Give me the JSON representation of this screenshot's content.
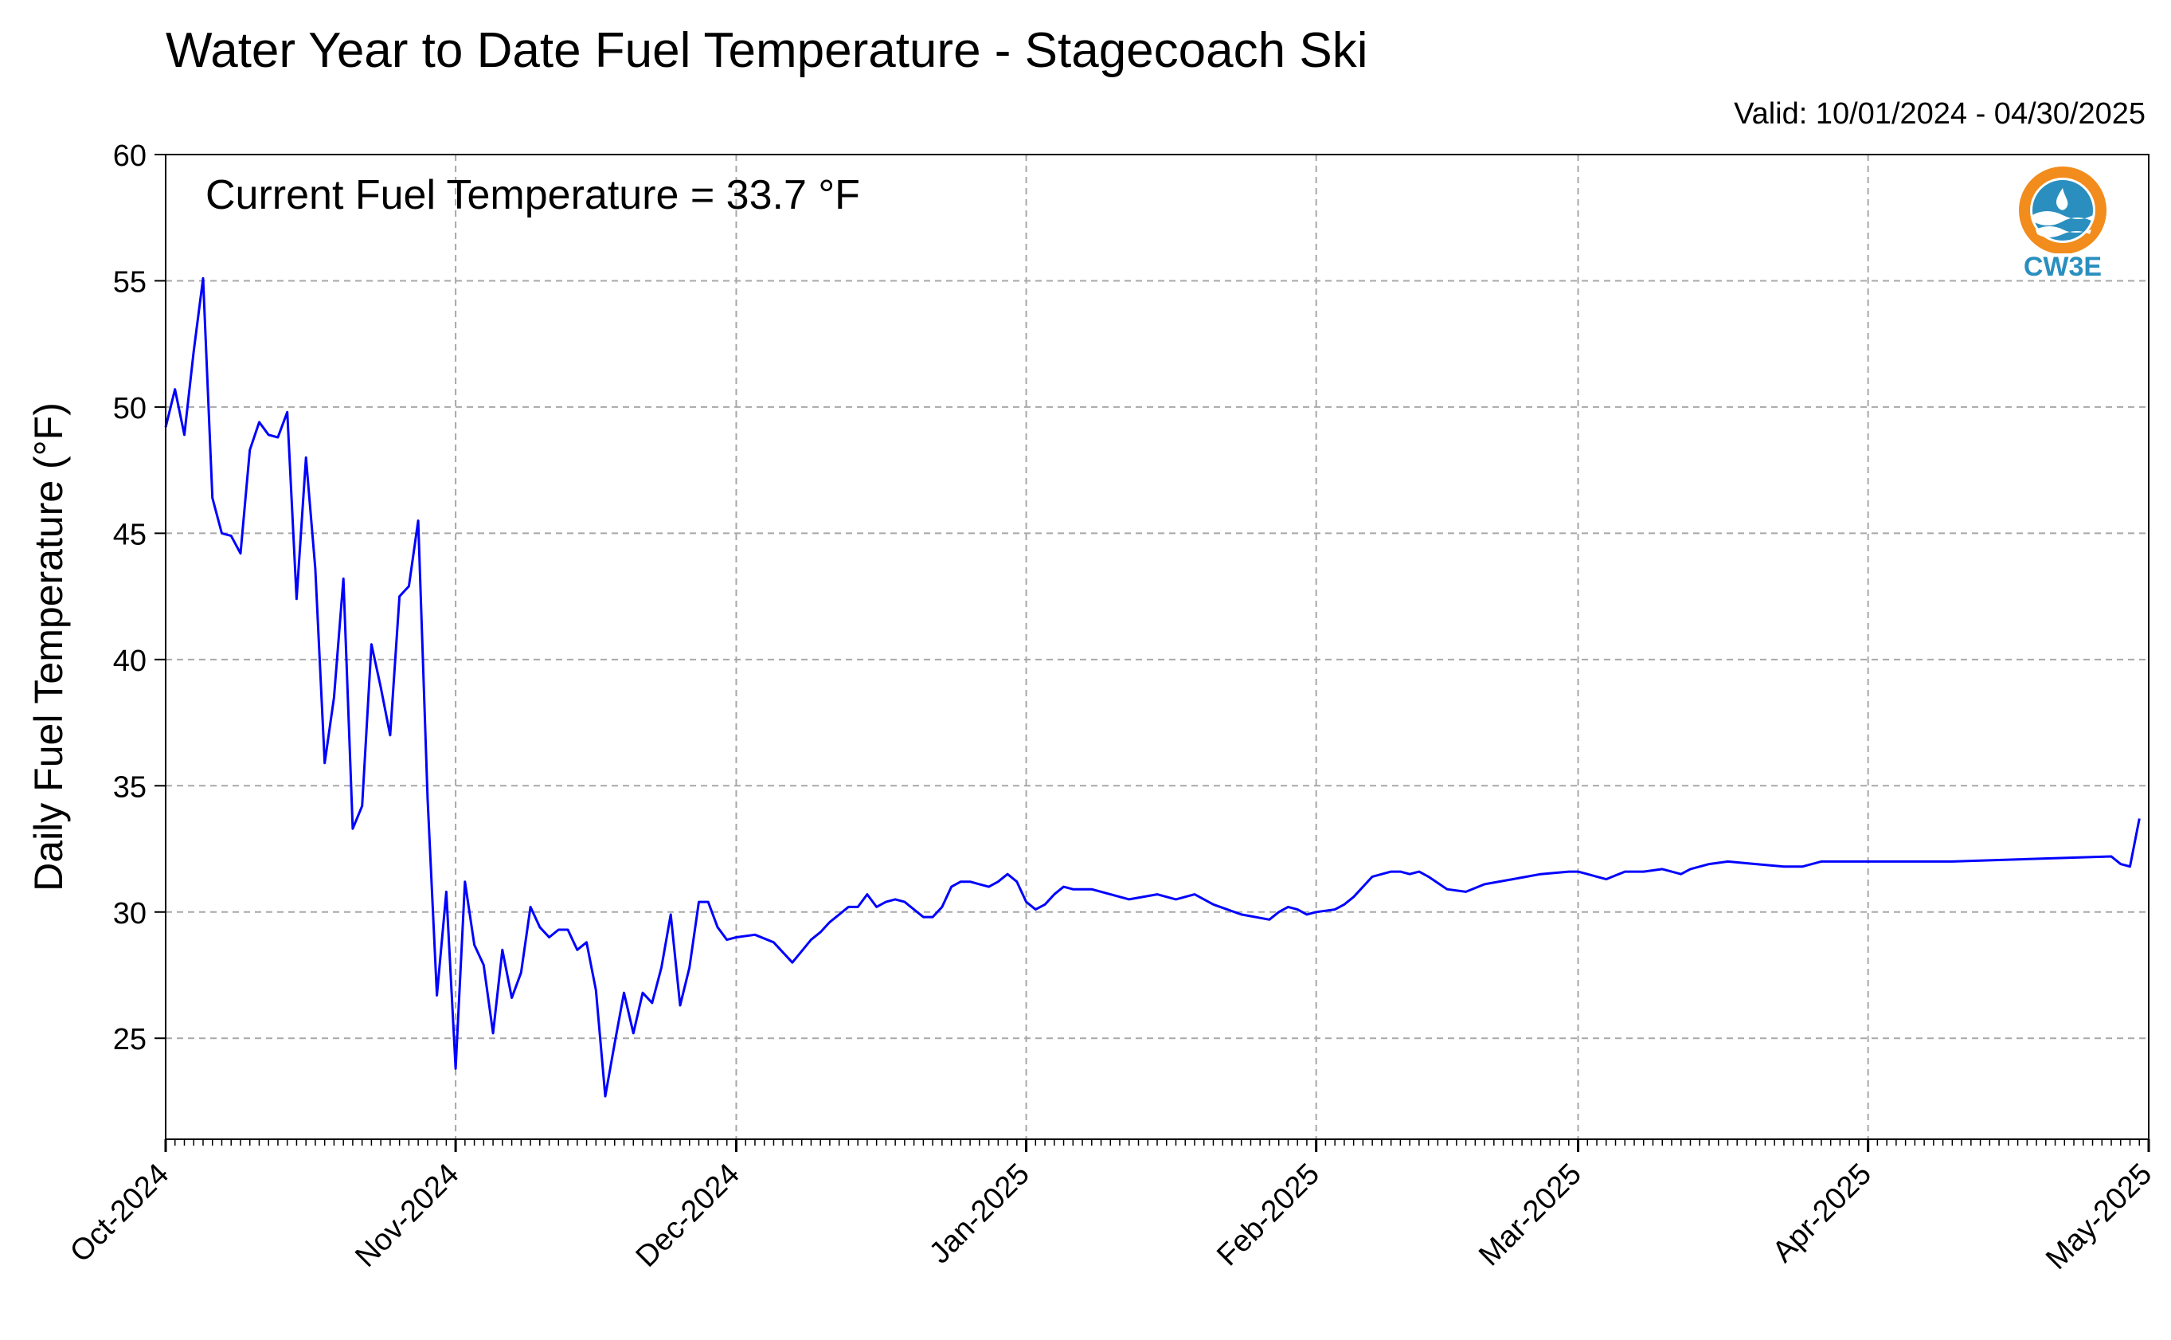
{
  "title": "Water Year to Date Fuel Temperature - Stagecoach Ski",
  "valid_range": "Valid: 10/01/2024 - 04/30/2025",
  "annotation": "Current Fuel Temperature = 33.7 °F",
  "logo": {
    "text": "CW3E",
    "icon": "cw3e-logo-icon",
    "ring_color": "#f28c1c",
    "wave_color": "#2a8fbf"
  },
  "chart_data": {
    "type": "line",
    "title": "Water Year to Date Fuel Temperature - Stagecoach Ski",
    "xlabel": "",
    "ylabel": "Daily Fuel Temperature (°F)",
    "x_start": "2024-10-01",
    "x_end": "2025-05-01",
    "xticks": [
      "Oct-2024",
      "Nov-2024",
      "Dec-2024",
      "Jan-2025",
      "Feb-2025",
      "Mar-2025",
      "Apr-2025",
      "May-2025"
    ],
    "yticks": [
      25,
      30,
      35,
      40,
      45,
      50,
      55,
      60
    ],
    "ylim": [
      21,
      60
    ],
    "grid": true,
    "line_color": "#0000ff",
    "series": [
      {
        "x": [
          "2024-10-01",
          "2024-10-02",
          "2024-10-03",
          "2024-10-04",
          "2024-10-05",
          "2024-10-06",
          "2024-10-07",
          "2024-10-08",
          "2024-10-09",
          "2024-10-10",
          "2024-10-11",
          "2024-10-12",
          "2024-10-13",
          "2024-10-14",
          "2024-10-15",
          "2024-10-16",
          "2024-10-17",
          "2024-10-18",
          "2024-10-19",
          "2024-10-20",
          "2024-10-21",
          "2024-10-22",
          "2024-10-23",
          "2024-10-24",
          "2024-10-25",
          "2024-10-26",
          "2024-10-27",
          "2024-10-28",
          "2024-10-29",
          "2024-10-30",
          "2024-10-31",
          "2024-11-01",
          "2024-11-02",
          "2024-11-03",
          "2024-11-04",
          "2024-11-05",
          "2024-11-06",
          "2024-11-07",
          "2024-11-08",
          "2024-11-09",
          "2024-11-10",
          "2024-11-11",
          "2024-11-12",
          "2024-11-13",
          "2024-11-14",
          "2024-11-15",
          "2024-11-16",
          "2024-11-17",
          "2024-11-18",
          "2024-11-19",
          "2024-11-20",
          "2024-11-21",
          "2024-11-22",
          "2024-11-23",
          "2024-11-24",
          "2024-11-25",
          "2024-11-26",
          "2024-11-27",
          "2024-11-28",
          "2024-11-29",
          "2024-11-30",
          "2024-12-01",
          "2024-12-03",
          "2024-12-05",
          "2024-12-07",
          "2024-12-09",
          "2024-12-10",
          "2024-12-11",
          "2024-12-12",
          "2024-12-13",
          "2024-12-14",
          "2024-12-15",
          "2024-12-16",
          "2024-12-17",
          "2024-12-18",
          "2024-12-19",
          "2024-12-20",
          "2024-12-21",
          "2024-12-22",
          "2024-12-23",
          "2024-12-24",
          "2024-12-25",
          "2024-12-26",
          "2024-12-27",
          "2024-12-28",
          "2024-12-29",
          "2024-12-30",
          "2024-12-31",
          "2025-01-01",
          "2025-01-02",
          "2025-01-03",
          "2025-01-04",
          "2025-01-05",
          "2025-01-06",
          "2025-01-08",
          "2025-01-10",
          "2025-01-12",
          "2025-01-15",
          "2025-01-17",
          "2025-01-19",
          "2025-01-21",
          "2025-01-24",
          "2025-01-27",
          "2025-01-28",
          "2025-01-29",
          "2025-01-30",
          "2025-01-31",
          "2025-02-01",
          "2025-02-03",
          "2025-02-04",
          "2025-02-05",
          "2025-02-06",
          "2025-02-07",
          "2025-02-09",
          "2025-02-10",
          "2025-02-11",
          "2025-02-12",
          "2025-02-13",
          "2025-02-15",
          "2025-02-17",
          "2025-02-19",
          "2025-02-22",
          "2025-02-25",
          "2025-02-28",
          "2025-03-01",
          "2025-03-02",
          "2025-03-03",
          "2025-03-04",
          "2025-03-06",
          "2025-03-08",
          "2025-03-10",
          "2025-03-11",
          "2025-03-12",
          "2025-03-13",
          "2025-03-15",
          "2025-03-17",
          "2025-03-20",
          "2025-03-23",
          "2025-03-25",
          "2025-03-27",
          "2025-03-30",
          "2025-04-10",
          "2025-04-27",
          "2025-04-28",
          "2025-04-29",
          "2025-04-30"
        ],
        "y": [
          49.2,
          50.7,
          48.9,
          52.2,
          55.1,
          46.4,
          45.0,
          44.9,
          44.2,
          48.3,
          49.4,
          48.9,
          48.8,
          49.8,
          42.4,
          48.0,
          43.6,
          35.9,
          38.5,
          43.2,
          33.3,
          34.2,
          40.6,
          38.9,
          37.0,
          42.5,
          42.9,
          45.5,
          34.5,
          26.7,
          30.8,
          23.8,
          31.2,
          28.7,
          27.9,
          25.2,
          28.5,
          26.6,
          27.6,
          30.2,
          29.4,
          29.0,
          29.3,
          29.3,
          28.5,
          28.8,
          26.9,
          22.7,
          24.8,
          26.8,
          25.2,
          26.8,
          26.4,
          27.8,
          29.9,
          26.3,
          27.8,
          30.4,
          30.4,
          29.4,
          28.9,
          29.0,
          29.1,
          28.8,
          28.0,
          28.9,
          29.2,
          29.6,
          29.9,
          30.2,
          30.2,
          30.7,
          30.2,
          30.4,
          30.5,
          30.4,
          30.1,
          29.8,
          29.8,
          30.2,
          31.0,
          31.2,
          31.2,
          31.1,
          31.0,
          31.2,
          31.5,
          31.2,
          30.4,
          30.1,
          30.3,
          30.7,
          31.0,
          30.9,
          30.9,
          30.7,
          30.5,
          30.7,
          30.5,
          30.7,
          30.3,
          29.9,
          29.7,
          30.0,
          30.2,
          30.1,
          29.9,
          30.0,
          30.1,
          30.3,
          30.6,
          31.0,
          31.4,
          31.6,
          31.6,
          31.5,
          31.6,
          31.4,
          30.9,
          30.8,
          31.1,
          31.3,
          31.5,
          31.6,
          31.6,
          31.5,
          31.4,
          31.3,
          31.6,
          31.6,
          31.7,
          31.6,
          31.5,
          31.7,
          31.9,
          32.0,
          31.9,
          31.8,
          31.8,
          32.0,
          32.0,
          32.0,
          32.2,
          31.9,
          31.8,
          33.7
        ]
      }
    ]
  }
}
